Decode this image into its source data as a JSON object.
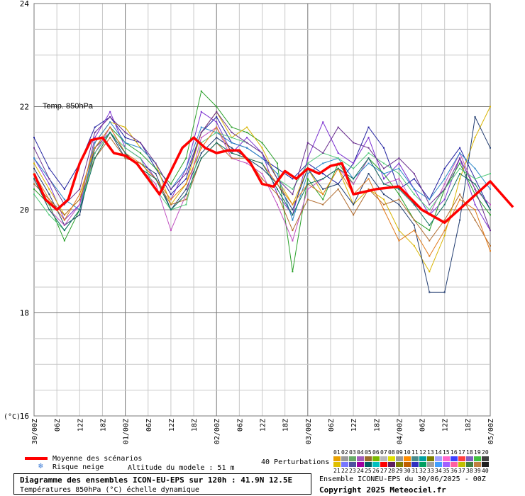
{
  "chart_data": {
    "type": "line",
    "title": "Temp. 850hPa",
    "ylabel": "(°C)",
    "ylim": [
      16,
      24
    ],
    "yticks": [
      "24",
      "22",
      "20",
      "18",
      "16"
    ],
    "x_labels": [
      "30/00Z",
      "06Z",
      "12Z",
      "18Z",
      "01/00Z",
      "06Z",
      "12Z",
      "18Z",
      "02/00Z",
      "06Z",
      "12Z",
      "18Z",
      "03/00Z",
      "06Z",
      "12Z",
      "18Z",
      "04/00Z",
      "06Z",
      "12Z",
      "18Z",
      "05/00Z"
    ],
    "x_hours": [
      0,
      6,
      12,
      18,
      24,
      30,
      36,
      42,
      48,
      54,
      60,
      66,
      72,
      78,
      84,
      90,
      96,
      102,
      108,
      114,
      120
    ],
    "grid": true,
    "mean": {
      "name": "Moyenne des scénarios",
      "color": "#ff0000",
      "points": [
        [
          0,
          20.7
        ],
        [
          3,
          20.2
        ],
        [
          6,
          20.0
        ],
        [
          9,
          20.2
        ],
        [
          12,
          20.9
        ],
        [
          15,
          21.35
        ],
        [
          18,
          21.4
        ],
        [
          21,
          21.1
        ],
        [
          24,
          21.05
        ],
        [
          27,
          20.9
        ],
        [
          30,
          20.6
        ],
        [
          33,
          20.3
        ],
        [
          36,
          20.75
        ],
        [
          39,
          21.2
        ],
        [
          42,
          21.4
        ],
        [
          45,
          21.2
        ],
        [
          48,
          21.1
        ],
        [
          51,
          21.15
        ],
        [
          54,
          21.15
        ],
        [
          57,
          20.9
        ],
        [
          60,
          20.5
        ],
        [
          63,
          20.45
        ],
        [
          66,
          20.75
        ],
        [
          69,
          20.6
        ],
        [
          72,
          20.8
        ],
        [
          75,
          20.7
        ],
        [
          78,
          20.85
        ],
        [
          81,
          20.9
        ],
        [
          84,
          20.3
        ],
        [
          90,
          20.4
        ],
        [
          96,
          20.45
        ],
        [
          102,
          20.0
        ],
        [
          108,
          19.75
        ],
        [
          114,
          20.15
        ],
        [
          120,
          20.55
        ],
        [
          126,
          20.05
        ]
      ]
    },
    "members": [
      {
        "color": "#1f1f9f",
        "values": [
          21.4,
          20.8,
          20.4,
          20.9,
          21.6,
          21.8,
          21.4,
          21.3,
          20.8,
          20.3,
          20.6,
          21.5,
          21.8,
          21.3,
          21.2,
          21.0,
          20.8,
          20.6,
          20.9,
          20.7,
          20.5,
          20.9,
          21.6,
          21.2,
          20.4,
          20.6,
          20.2,
          20.8,
          21.2,
          20.6,
          20.0
        ]
      },
      {
        "color": "#7a2fd0",
        "values": [
          21.0,
          20.5,
          19.8,
          20.1,
          21.4,
          21.9,
          21.2,
          21.0,
          20.6,
          20.2,
          20.8,
          21.9,
          21.7,
          21.1,
          21.4,
          21.1,
          20.3,
          19.9,
          21.0,
          21.7,
          21.1,
          20.9,
          21.4,
          20.6,
          20.9,
          20.4,
          19.9,
          20.2,
          21.0,
          20.1,
          19.6
        ]
      },
      {
        "color": "#2aa02a",
        "values": [
          20.4,
          20.1,
          19.4,
          20.0,
          21.2,
          21.6,
          21.3,
          21.1,
          20.8,
          20.5,
          21.0,
          22.3,
          22.0,
          21.6,
          21.5,
          21.3,
          20.9,
          18.8,
          20.6,
          20.2,
          20.9,
          20.5,
          21.0,
          20.7,
          20.3,
          19.8,
          19.6,
          20.4,
          20.9,
          20.3,
          19.9
        ]
      },
      {
        "color": "#d8b400",
        "values": [
          20.9,
          20.4,
          19.9,
          20.2,
          21.3,
          21.7,
          21.6,
          21.2,
          20.9,
          20.1,
          20.5,
          21.5,
          21.9,
          21.4,
          21.6,
          21.2,
          20.6,
          20.1,
          20.8,
          20.3,
          20.8,
          20.1,
          20.4,
          20.2,
          19.6,
          19.3,
          18.8,
          19.5,
          20.6,
          21.4,
          22.0
        ]
      },
      {
        "color": "#203b6f",
        "values": [
          20.8,
          20.3,
          19.7,
          19.9,
          21.2,
          21.5,
          21.0,
          20.9,
          20.7,
          20.0,
          20.4,
          21.1,
          21.4,
          21.2,
          21.0,
          20.8,
          20.5,
          20.0,
          20.8,
          20.4,
          20.5,
          20.1,
          20.7,
          20.3,
          20.1,
          19.7,
          18.4,
          18.4,
          19.8,
          21.8,
          21.2
        ]
      },
      {
        "color": "#c050c0",
        "values": [
          20.6,
          20.0,
          19.7,
          20.1,
          21.1,
          21.6,
          21.1,
          20.8,
          20.5,
          19.6,
          20.3,
          21.4,
          21.6,
          21.0,
          20.9,
          20.7,
          20.1,
          19.4,
          20.4,
          20.6,
          20.8,
          20.5,
          21.0,
          20.5,
          20.6,
          20.1,
          19.9,
          20.5,
          21.1,
          20.4,
          20.1
        ]
      },
      {
        "color": "#2a86c8",
        "values": [
          21.0,
          20.6,
          20.2,
          20.0,
          21.3,
          21.7,
          21.3,
          21.2,
          20.9,
          20.4,
          20.8,
          21.6,
          21.5,
          21.3,
          21.2,
          21.0,
          20.7,
          19.8,
          20.7,
          20.9,
          21.0,
          20.6,
          20.9,
          20.7,
          20.8,
          20.4,
          20.2,
          20.6,
          21.1,
          20.8,
          20.4
        ]
      },
      {
        "color": "#b06a2c",
        "values": [
          20.5,
          20.2,
          19.9,
          20.2,
          21.0,
          21.4,
          21.0,
          20.9,
          20.6,
          20.1,
          20.2,
          21.0,
          21.3,
          21.0,
          21.0,
          20.6,
          20.3,
          19.6,
          20.2,
          20.1,
          20.4,
          19.9,
          20.4,
          20.1,
          20.2,
          19.8,
          19.4,
          19.8,
          20.3,
          19.8,
          19.3
        ]
      },
      {
        "color": "#50c878",
        "values": [
          20.3,
          19.9,
          19.6,
          20.0,
          21.1,
          21.5,
          21.2,
          21.0,
          20.4,
          20.0,
          20.1,
          21.3,
          21.5,
          21.4,
          21.3,
          21.1,
          20.6,
          20.4,
          20.9,
          21.1,
          21.0,
          20.8,
          21.1,
          20.9,
          20.7,
          20.3,
          20.0,
          20.4,
          20.8,
          20.6,
          20.7
        ]
      },
      {
        "color": "#e07a1a",
        "values": [
          20.7,
          20.2,
          19.8,
          20.3,
          21.2,
          21.6,
          21.1,
          20.9,
          20.6,
          20.2,
          20.5,
          21.2,
          21.6,
          21.1,
          21.0,
          20.9,
          20.5,
          20.1,
          20.5,
          20.3,
          20.8,
          20.3,
          20.6,
          20.0,
          19.4,
          19.6,
          19.1,
          19.6,
          20.2,
          20.0,
          19.2
        ]
      },
      {
        "color": "#6a2f8f",
        "values": [
          21.2,
          20.6,
          20.1,
          20.4,
          21.5,
          21.8,
          21.5,
          21.3,
          20.9,
          20.4,
          20.7,
          21.5,
          21.9,
          21.5,
          21.3,
          21.1,
          20.6,
          20.3,
          21.3,
          21.1,
          21.6,
          21.3,
          21.2,
          20.8,
          21.0,
          20.7,
          20.1,
          20.4,
          21.0,
          20.4,
          19.6
        ]
      },
      {
        "color": "#0f6f5f",
        "values": [
          20.6,
          20.0,
          19.6,
          20.0,
          21.0,
          21.5,
          21.1,
          20.8,
          20.6,
          20.0,
          20.3,
          21.0,
          21.3,
          21.1,
          21.0,
          20.9,
          20.4,
          19.9,
          20.5,
          20.6,
          20.8,
          20.6,
          21.0,
          20.5,
          20.4,
          20.1,
          19.7,
          20.1,
          20.7,
          20.5,
          20.0
        ]
      }
    ]
  },
  "legend": {
    "mean_label": "Moyenne des scénarios",
    "snow_label": "Risque neige",
    "altitude": "Altitude du modele : 51 m",
    "perturbations_label": "40 Perturbations",
    "codes_row1": [
      "01",
      "02",
      "03",
      "04",
      "05",
      "06",
      "07",
      "08",
      "09",
      "10",
      "11",
      "12",
      "13",
      "14",
      "15",
      "16",
      "17",
      "18",
      "19",
      "20"
    ],
    "codes_row2": [
      "21",
      "22",
      "23",
      "24",
      "25",
      "26",
      "27",
      "28",
      "29",
      "30",
      "31",
      "32",
      "33",
      "34",
      "35",
      "36",
      "37",
      "38",
      "39",
      "40"
    ],
    "colors_row1": [
      "#e8a000",
      "#999999",
      "#66aa66",
      "#a05ab8",
      "#9b6b2b",
      "#7ab800",
      "#b8b8b8",
      "#e0e000",
      "#999999",
      "#ff8c00",
      "#4b8b8b",
      "#00a0a0",
      "#7f7f00",
      "#a0a0ff",
      "#ff66cc",
      "#4040ff",
      "#ff4040",
      "#8060c0",
      "#40c040",
      "#404040"
    ],
    "colors_row2": [
      "#e0c000",
      "#7777ff",
      "#5050a0",
      "#a000a0",
      "#006060",
      "#00c0c0",
      "#ff0000",
      "#602060",
      "#808000",
      "#c06000",
      "#3030c0",
      "#00a060",
      "#a0a0a0",
      "#40a0ff",
      "#a060ff",
      "#ff60a0",
      "#c0c000",
      "#408040",
      "#c08040",
      "#202020"
    ]
  },
  "footer": {
    "title": "Diagramme des ensembles ICON-EU-EPS sur 120h : 41.9N 12.5E",
    "subtitle": "Températures 850hPa (°C) échelle dynamique",
    "ensemble": "Ensemble ICONEU-EPS du 30/06/2025 - 00Z",
    "copyright": "Copyright 2025 Meteociel.fr"
  }
}
